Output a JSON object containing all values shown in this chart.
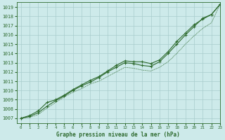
{
  "title": "Graphe pression niveau de la mer (hPa)",
  "bg_color": "#cdeaea",
  "grid_color": "#a8cccc",
  "line_color": "#2d6a2d",
  "xlim": [
    -0.5,
    23
  ],
  "ylim": [
    1006.5,
    1019.5
  ],
  "yticks": [
    1007,
    1008,
    1009,
    1010,
    1011,
    1012,
    1013,
    1014,
    1015,
    1016,
    1017,
    1018,
    1019
  ],
  "xticks": [
    0,
    1,
    2,
    3,
    4,
    5,
    6,
    7,
    8,
    9,
    10,
    11,
    12,
    13,
    14,
    15,
    16,
    17,
    18,
    19,
    20,
    21,
    22,
    23
  ],
  "s1_x": [
    0,
    1,
    2,
    3,
    4,
    5,
    6,
    7,
    8,
    9,
    10,
    11,
    12,
    13,
    14,
    15,
    16,
    17,
    18,
    19,
    20,
    21,
    22,
    23
  ],
  "s1_y": [
    1007.0,
    1007.2,
    1007.6,
    1008.3,
    1008.9,
    1009.4,
    1010.0,
    1010.5,
    1010.9,
    1011.4,
    1012.0,
    1012.5,
    1013.0,
    1012.9,
    1012.7,
    1012.6,
    1013.1,
    1014.0,
    1015.0,
    1016.0,
    1016.9,
    1017.8,
    1018.2,
    1019.3
  ],
  "s2_x": [
    0,
    1,
    2,
    3,
    4,
    5,
    6,
    7,
    8,
    9,
    10,
    11,
    12,
    13,
    14,
    15,
    16,
    17,
    18,
    19,
    20,
    21,
    22,
    23
  ],
  "s2_y": [
    1007.0,
    1007.3,
    1007.8,
    1008.7,
    1009.0,
    1009.5,
    1010.1,
    1010.6,
    1011.1,
    1011.5,
    1012.1,
    1012.7,
    1013.2,
    1013.1,
    1013.1,
    1012.9,
    1013.3,
    1014.2,
    1015.3,
    1016.2,
    1017.1,
    1017.7,
    1018.2,
    1019.3
  ],
  "s3_x": [
    0,
    1,
    2,
    3,
    4,
    5,
    6,
    7,
    8,
    9,
    10,
    11,
    12,
    13,
    14,
    15,
    16,
    17,
    18,
    19,
    20,
    21,
    22,
    23
  ],
  "s3_y": [
    1007.0,
    1007.1,
    1007.4,
    1008.1,
    1008.7,
    1009.3,
    1009.8,
    1010.2,
    1010.7,
    1011.0,
    1011.5,
    1012.0,
    1012.5,
    1012.4,
    1012.2,
    1012.1,
    1012.5,
    1013.1,
    1014.0,
    1015.0,
    1015.9,
    1016.7,
    1017.3,
    1019.3
  ]
}
